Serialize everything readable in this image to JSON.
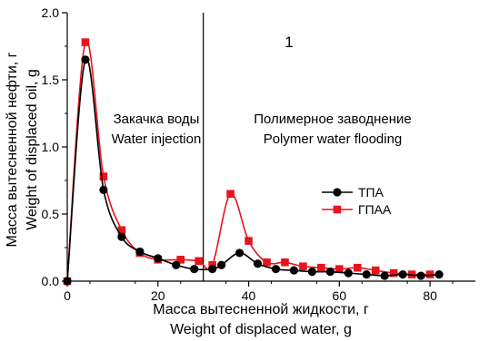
{
  "chart_data": {
    "type": "line",
    "xlabel": [
      "Масса вытесненной жидкости, г",
      "Weight of displaced water, g"
    ],
    "ylabel": [
      "Масса вытесненной нефти, г",
      "Weight of displaced oil, g"
    ],
    "xlim": [
      0,
      90
    ],
    "ylim": [
      0,
      2.0
    ],
    "x_ticks": [
      0,
      20,
      40,
      60,
      80
    ],
    "y_ticks": [
      0.0,
      0.5,
      1.0,
      1.5,
      2.0
    ],
    "x_tick_labels": [
      "0",
      "20",
      "40",
      "60",
      "80"
    ],
    "y_tick_labels": [
      "0.0",
      "0.5",
      "1.0",
      "1.5",
      "2.0"
    ],
    "grid": false,
    "legend": "center-right",
    "annotations": {
      "panel_number": "1",
      "left_region": [
        "Закачка воды",
        "Water injection"
      ],
      "right_region": [
        "Полимерное заводнение",
        "Polymer water flooding"
      ]
    },
    "divider_x": 30,
    "series": [
      {
        "name": "ТПА",
        "color": "#000000",
        "marker": "circle",
        "x": [
          0,
          4,
          8,
          12,
          16,
          20,
          24,
          28,
          32,
          34,
          38,
          42,
          46,
          50,
          54,
          58,
          62,
          66,
          70,
          74,
          78,
          82
        ],
        "y": [
          0.0,
          1.65,
          0.68,
          0.33,
          0.22,
          0.17,
          0.12,
          0.09,
          0.09,
          0.12,
          0.21,
          0.13,
          0.09,
          0.08,
          0.07,
          0.07,
          0.06,
          0.05,
          0.04,
          0.05,
          0.04,
          0.05
        ]
      },
      {
        "name": "ГПАА",
        "color": "#e8141c",
        "marker": "square",
        "x": [
          0,
          4,
          8,
          12,
          16,
          20,
          25,
          29,
          32,
          36,
          40,
          44,
          48,
          52,
          56,
          60,
          64,
          68,
          72,
          76,
          80
        ],
        "y": [
          0.0,
          1.78,
          0.78,
          0.38,
          0.21,
          0.16,
          0.16,
          0.15,
          0.12,
          0.65,
          0.3,
          0.14,
          0.14,
          0.11,
          0.1,
          0.09,
          0.1,
          0.08,
          0.06,
          0.05,
          0.05
        ]
      }
    ]
  }
}
